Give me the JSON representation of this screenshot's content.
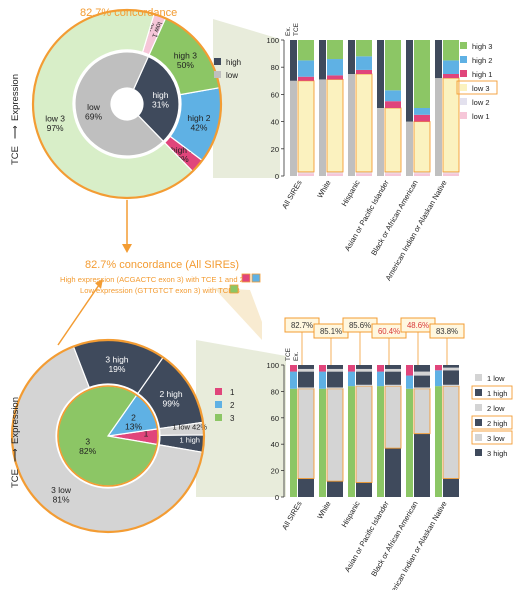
{
  "colors": {
    "orange": "#f39c33",
    "green": "#8cc665",
    "light_green": "#d8eec8",
    "dark_navy": "#3f4a5c",
    "gray": "#bfbfbf",
    "light_gray": "#d4d4d4",
    "blue": "#5fb1e4",
    "pink": "#e0457b",
    "light_pink": "#f6c6d8",
    "light_yellow": "#fbf2bf",
    "light_purple": "#e3e1ee",
    "callout_fill": "#fff7df",
    "red_text": "#d93a3a"
  },
  "top_donut": {
    "concordance_label": "82.7% concordance",
    "side_label_left": "TCE",
    "side_label_right": "Expression",
    "arrow_glyph": "⟶",
    "legend": [
      {
        "label": "high",
        "color": "#3f4a5c"
      },
      {
        "label": "low",
        "color": "#bfbfbf"
      }
    ]
  },
  "bottom_donut": {
    "side_label_left": "TCE",
    "side_label_right": "Expression",
    "arrow_glyph": "⟶",
    "legend": [
      {
        "label": "1",
        "color": "#e0457b"
      },
      {
        "label": "2",
        "color": "#5fb1e4"
      },
      {
        "label": "3",
        "color": "#8cc665"
      }
    ]
  },
  "middle_text": {
    "title": "82.7% concordance (All SIREs)",
    "line1": "High expression (ACGACTC exon 3) with TCE 1 and 2",
    "line2": "Low expression (GTTGTCT exon 3) with TCE 3"
  },
  "chart_data": [
    {
      "type": "pie",
      "name": "top-inner",
      "slices": [
        {
          "label": "high",
          "value": 31,
          "color": "#3f4a5c"
        },
        {
          "label": "low",
          "value": 69,
          "color": "#bfbfbf"
        }
      ],
      "labels": [
        "high\n31%",
        "low\n69%"
      ]
    },
    {
      "type": "pie",
      "name": "top-outer",
      "slices": [
        {
          "label": "high 1",
          "value": 8,
          "color": "#e0457b"
        },
        {
          "label": "high 2",
          "value": 42,
          "color": "#5fb1e4"
        },
        {
          "label": "high 3",
          "value": 50,
          "color": "#8cc665"
        },
        {
          "label": "low 1",
          "value": 3,
          "color": "#f6c6d8"
        },
        {
          "label": "low 3",
          "value": 97,
          "color": "#d8eec8"
        }
      ],
      "labels": [
        "high 1\n8%",
        "high 2\n42%",
        "high 3\n50%",
        "low 1\n3%",
        "low 3\n97%"
      ]
    },
    {
      "type": "pie",
      "name": "bottom-inner",
      "slices": [
        {
          "label": "1",
          "value": 5,
          "color": "#e0457b"
        },
        {
          "label": "2",
          "value": 13,
          "color": "#5fb1e4"
        },
        {
          "label": "3",
          "value": 82,
          "color": "#8cc665"
        }
      ],
      "labels": [
        "1",
        "2\n13%",
        "3\n82%"
      ]
    },
    {
      "type": "pie",
      "name": "bottom-outer",
      "slices": [
        {
          "label": "1 high",
          "value": 58,
          "color": "#3f4a5c"
        },
        {
          "label": "1 low",
          "value": 42,
          "color": "#d4d4d4"
        },
        {
          "label": "2 high",
          "value": 99,
          "color": "#3f4a5c"
        },
        {
          "label": "3 high",
          "value": 19,
          "color": "#3f4a5c"
        },
        {
          "label": "3 low",
          "value": 81,
          "color": "#d4d4d4"
        }
      ],
      "labels": [
        "1 high",
        "1 low 42%",
        "2 high\n99%",
        "3 high\n19%",
        "3 low\n81%"
      ]
    },
    {
      "type": "bar",
      "name": "top-stacked",
      "ylim": [
        0,
        100
      ],
      "yticks": [
        0,
        20,
        40,
        60,
        80,
        100
      ],
      "categories": [
        "All SIREs",
        "White",
        "Hispanic",
        "Asian or Pacific Islander",
        "Black or African American",
        "American Indian or Alaskan Native"
      ],
      "column_labels": [
        "Ex.",
        "TCE"
      ],
      "expression": [
        {
          "name": "low",
          "values": [
            70,
            71,
            75,
            50,
            40,
            72
          ]
        },
        {
          "name": "high",
          "values": [
            30,
            29,
            25,
            50,
            60,
            28
          ]
        }
      ],
      "tce_series": [
        {
          "name": "low 1",
          "values": [
            2,
            2,
            2,
            2,
            2,
            2
          ]
        },
        {
          "name": "low 2",
          "values": [
            1,
            1,
            1,
            1,
            1,
            1
          ]
        },
        {
          "name": "low 3",
          "values": [
            67,
            68,
            72,
            47,
            37,
            69
          ]
        },
        {
          "name": "high 1",
          "values": [
            3,
            3,
            3,
            5,
            5,
            3
          ]
        },
        {
          "name": "high 2",
          "values": [
            12,
            12,
            10,
            8,
            5,
            10
          ]
        },
        {
          "name": "high 3",
          "values": [
            15,
            14,
            12,
            37,
            50,
            15
          ]
        }
      ],
      "legend": [
        {
          "label": "high 3",
          "color": "#8cc665"
        },
        {
          "label": "high 2",
          "color": "#5fb1e4"
        },
        {
          "label": "high 1",
          "color": "#e0457b"
        },
        {
          "label": "low 3",
          "color": "#fbf2bf"
        },
        {
          "label": "low 2",
          "color": "#e3e1ee"
        },
        {
          "label": "low 1",
          "color": "#f6c6d8"
        }
      ]
    },
    {
      "type": "bar",
      "name": "bottom-stacked",
      "ylim": [
        0,
        100
      ],
      "yticks": [
        0,
        20,
        40,
        60,
        80,
        100
      ],
      "categories": [
        "All SIREs",
        "White",
        "Hispanic",
        "Asian or Pacific Islander",
        "Black or African American",
        "American Indian or Alaskan Native"
      ],
      "column_labels": [
        "TCE",
        "Ex."
      ],
      "concordance": [
        "82.7%",
        "85.1%",
        "85.6%",
        "60.4%",
        "48.6%",
        "83.8%"
      ],
      "concordance_highlight": [
        false,
        false,
        false,
        true,
        true,
        false
      ],
      "tce": [
        {
          "name": "3",
          "values": [
            82,
            82,
            84,
            84,
            82,
            84
          ]
        },
        {
          "name": "2",
          "values": [
            13,
            13,
            11,
            11,
            10,
            12
          ]
        },
        {
          "name": "1",
          "values": [
            5,
            5,
            5,
            5,
            8,
            4
          ]
        }
      ],
      "expression_series": [
        {
          "name": "3 high",
          "values": [
            14,
            12,
            11,
            37,
            48,
            14
          ]
        },
        {
          "name": "3 low",
          "values": [
            68,
            70,
            73,
            47,
            34,
            70
          ]
        },
        {
          "name": "2 low",
          "values": [
            1,
            1,
            1,
            1,
            1,
            1
          ]
        },
        {
          "name": "2 high",
          "values": [
            12,
            12,
            10,
            10,
            9,
            11
          ]
        },
        {
          "name": "1 low",
          "values": [
            2,
            2,
            2,
            2,
            3,
            2
          ]
        },
        {
          "name": "1 high",
          "values": [
            3,
            3,
            3,
            3,
            5,
            2
          ]
        }
      ],
      "legend": [
        {
          "label": "1 low",
          "color": "#d4d4d4"
        },
        {
          "label": "1 high",
          "color": "#3f4a5c"
        },
        {
          "label": "2 low",
          "color": "#d4d4d4"
        },
        {
          "label": "2 high",
          "color": "#3f4a5c"
        },
        {
          "label": "3 low",
          "color": "#d4d4d4"
        },
        {
          "label": "3 high",
          "color": "#3f4a5c"
        }
      ]
    }
  ]
}
